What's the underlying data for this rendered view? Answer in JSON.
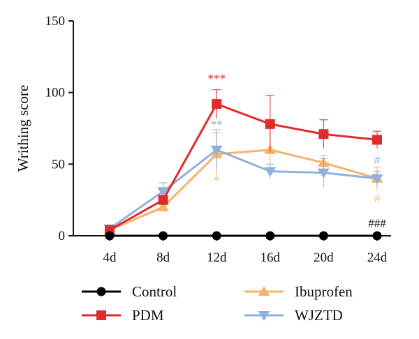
{
  "chart_data": {
    "type": "line",
    "xlabel": "",
    "ylabel": "Writhing score",
    "ylim": [
      0,
      150
    ],
    "yticks": [
      0,
      50,
      100,
      150
    ],
    "categories": [
      "4d",
      "8d",
      "12d",
      "16d",
      "20d",
      "24d"
    ],
    "legend_position": "bottom",
    "grid": false,
    "series": [
      {
        "name": "Control",
        "color": "#000000",
        "marker": "circle",
        "values": [
          0,
          0,
          0,
          0,
          0,
          0
        ],
        "errors": [
          0,
          0,
          0,
          0,
          0,
          0
        ]
      },
      {
        "name": "PDM",
        "color": "#e02b2b",
        "marker": "square",
        "values": [
          4,
          25,
          92,
          78,
          71,
          67
        ],
        "errors": [
          1,
          3,
          10,
          20,
          10,
          6
        ]
      },
      {
        "name": "Ibuprofen",
        "color": "#f4b56b",
        "marker": "triangle-up",
        "values": [
          4,
          20,
          57,
          60,
          51,
          40
        ],
        "errors": [
          1,
          3,
          15,
          16,
          5,
          8
        ]
      },
      {
        "name": "WJZTD",
        "color": "#8fb1dc",
        "marker": "triangle-down",
        "values": [
          5,
          31,
          60,
          45,
          44,
          40
        ],
        "errors": [
          1,
          6,
          14,
          5,
          10,
          5
        ]
      }
    ],
    "annotations": [
      {
        "text": "***",
        "category": "12d",
        "y": 110,
        "color": "#e02b2b"
      },
      {
        "text": "**",
        "category": "12d",
        "y": 78,
        "color": "#8fb1dc"
      },
      {
        "text": "*",
        "category": "12d",
        "y": 39,
        "color": "#f4b56b"
      },
      {
        "text": "#",
        "category": "24d",
        "y": 53,
        "color": "#8fb1dc"
      },
      {
        "text": "#",
        "category": "24d",
        "y": 26,
        "color": "#f4b56b"
      },
      {
        "text": "###",
        "category": "24d",
        "y": 9,
        "color": "#111111"
      }
    ]
  }
}
